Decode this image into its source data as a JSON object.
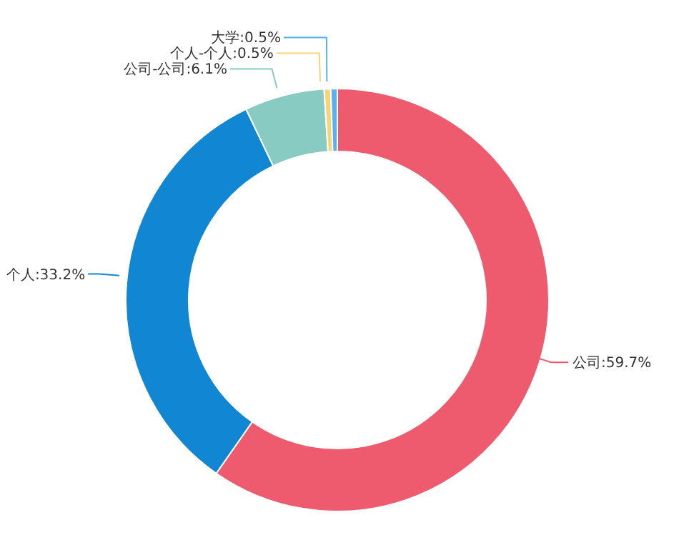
{
  "chart_data": {
    "type": "donut",
    "categories": [
      "公司",
      "个人",
      "公司-公司",
      "个人-个人",
      "大学"
    ],
    "values": [
      59.7,
      33.2,
      6.1,
      0.5,
      0.5
    ],
    "colors": [
      "#ef5b6e",
      "#1187d4",
      "#87cbc2",
      "#f5d57a",
      "#5ab1ef"
    ],
    "value_labels": [
      ":59.7%",
      ":33.2%",
      ":6.1%",
      ":0.5%",
      ":0.5%"
    ],
    "legend": false
  }
}
